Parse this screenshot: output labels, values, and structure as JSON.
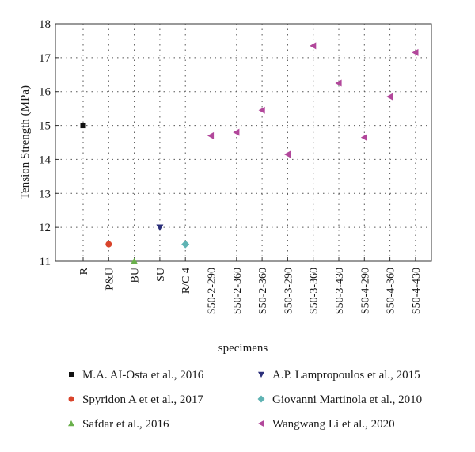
{
  "chart_data": {
    "type": "scatter",
    "title": "",
    "xlabel": "specimens",
    "ylabel": "Tension Strength (MPa)",
    "ylim": [
      11,
      18
    ],
    "yticks": [
      11,
      12,
      13,
      14,
      15,
      16,
      17,
      18
    ],
    "grid": true,
    "legend_position": "bottom",
    "categories": [
      "R",
      "P&U",
      "BU",
      "SU",
      "R/C 4",
      "S50-2-290",
      "S50-2-360",
      "S50-2-360",
      "S50-3-290",
      "S50-3-360",
      "S50-3-430",
      "S50-4-290",
      "S50-4-360",
      "S50-4-430"
    ],
    "series": [
      {
        "name": "M.A. AI-Osta et al., 2016",
        "marker": "square",
        "color": "#111111",
        "points": [
          {
            "x": 0,
            "y": 15.0
          }
        ]
      },
      {
        "name": "Spyridon A et et al., 2017",
        "marker": "circle",
        "color": "#d9442b",
        "points": [
          {
            "x": 1,
            "y": 11.5
          }
        ]
      },
      {
        "name": "Safdar et al., 2016",
        "marker": "triangle-up",
        "color": "#6ab04c",
        "points": [
          {
            "x": 2,
            "y": 11.0
          }
        ]
      },
      {
        "name": "A.P. Lampropoulos et al., 2015",
        "marker": "triangle-down",
        "color": "#2b2f7a",
        "points": [
          {
            "x": 3,
            "y": 12.0
          }
        ]
      },
      {
        "name": "Giovanni Martinola et al., 2010",
        "marker": "diamond",
        "color": "#5fb3b3",
        "points": [
          {
            "x": 4,
            "y": 11.5
          }
        ]
      },
      {
        "name": "Wangwang Li et al., 2020",
        "marker": "triangle-left",
        "color": "#b2479b",
        "points": [
          {
            "x": 5,
            "y": 14.7
          },
          {
            "x": 6,
            "y": 14.8
          },
          {
            "x": 7,
            "y": 15.45
          },
          {
            "x": 8,
            "y": 14.15
          },
          {
            "x": 9,
            "y": 17.35
          },
          {
            "x": 10,
            "y": 16.25
          },
          {
            "x": 11,
            "y": 14.65
          },
          {
            "x": 12,
            "y": 15.85
          },
          {
            "x": 13,
            "y": 17.15
          }
        ]
      }
    ]
  }
}
